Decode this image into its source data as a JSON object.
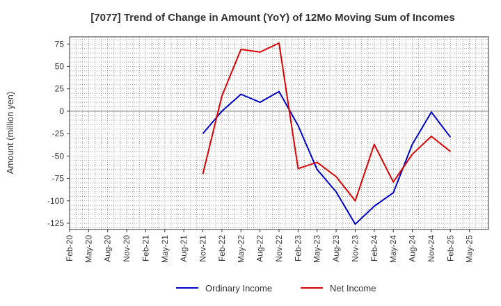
{
  "chart_data": {
    "type": "line",
    "title": "[7077]  Trend of Change in Amount (YoY) of 12Mo Moving Sum of Incomes",
    "ylabel": "Amount (million yen)",
    "xlabel": "",
    "ylim": [
      -132,
      83
    ],
    "yticks": [
      75,
      50,
      25,
      0,
      -25,
      -50,
      -75,
      -100,
      -125
    ],
    "x_ticks": [
      "Feb-20",
      "May-20",
      "Aug-20",
      "Nov-20",
      "Feb-21",
      "May-21",
      "Aug-21",
      "Nov-21",
      "Feb-22",
      "May-22",
      "Aug-22",
      "Nov-22",
      "Feb-23",
      "May-23",
      "Aug-23",
      "Nov-23",
      "Feb-24",
      "May-24",
      "Aug-24",
      "Nov-24",
      "Feb-25",
      "May-25"
    ],
    "grid": true,
    "legend_position": "bottom",
    "zero_line": true,
    "series": [
      {
        "name": "Ordinary Income",
        "color": "#0000cc",
        "x": [
          "Nov-21",
          "Feb-22",
          "May-22",
          "Aug-22",
          "Nov-22",
          "Feb-23",
          "May-23",
          "Aug-23",
          "Nov-23",
          "Feb-24",
          "May-24",
          "Aug-24",
          "Nov-24",
          "Feb-25"
        ],
        "values": [
          -25,
          0,
          19,
          10,
          22,
          -16,
          -65,
          -90,
          -126,
          -106,
          -91,
          -37,
          -1,
          -29
        ]
      },
      {
        "name": "Net Income",
        "color": "#dd0000",
        "x": [
          "Nov-21",
          "Feb-22",
          "May-22",
          "Aug-22",
          "Nov-22",
          "Feb-23",
          "May-23",
          "Aug-23",
          "Nov-23",
          "Feb-24",
          "May-24",
          "Aug-24",
          "Nov-24",
          "Feb-25"
        ],
        "values": [
          -70,
          17,
          69,
          66,
          76,
          -64,
          -57,
          -73,
          -100,
          -37,
          -79,
          -48,
          -28,
          -45
        ]
      }
    ]
  }
}
